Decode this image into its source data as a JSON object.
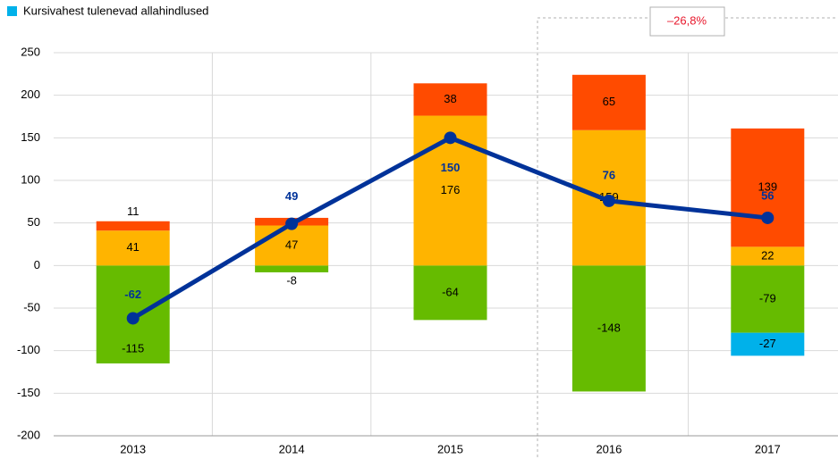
{
  "chart_data": {
    "type": "bar",
    "categories": [
      "2013",
      "2014",
      "2015",
      "2016",
      "2017"
    ],
    "series": [
      {
        "color": "#66bb00",
        "values": [
          -115,
          -8,
          -64,
          -148,
          -79
        ]
      },
      {
        "name": "Kursivahest tulenevad allahindlused",
        "color": "#00b1ea",
        "values": [
          null,
          null,
          null,
          null,
          -27
        ]
      },
      {
        "color": "#ffb400",
        "values": [
          41,
          47,
          176,
          159,
          22
        ]
      },
      {
        "color": "#ff4b00",
        "values": [
          11,
          9,
          38,
          65,
          139
        ],
        "value_labels": [
          "11",
          null,
          "38",
          "65",
          "139"
        ]
      },
      {
        "type": "line",
        "color": "#003299",
        "values": [
          -62,
          49,
          150,
          76,
          56
        ]
      }
    ],
    "annotation": "–26,8%",
    "ylim": [
      -200,
      250
    ],
    "yticks": [
      -200,
      -150,
      -100,
      -50,
      0,
      50,
      100,
      150,
      200,
      250
    ],
    "grid": true
  }
}
